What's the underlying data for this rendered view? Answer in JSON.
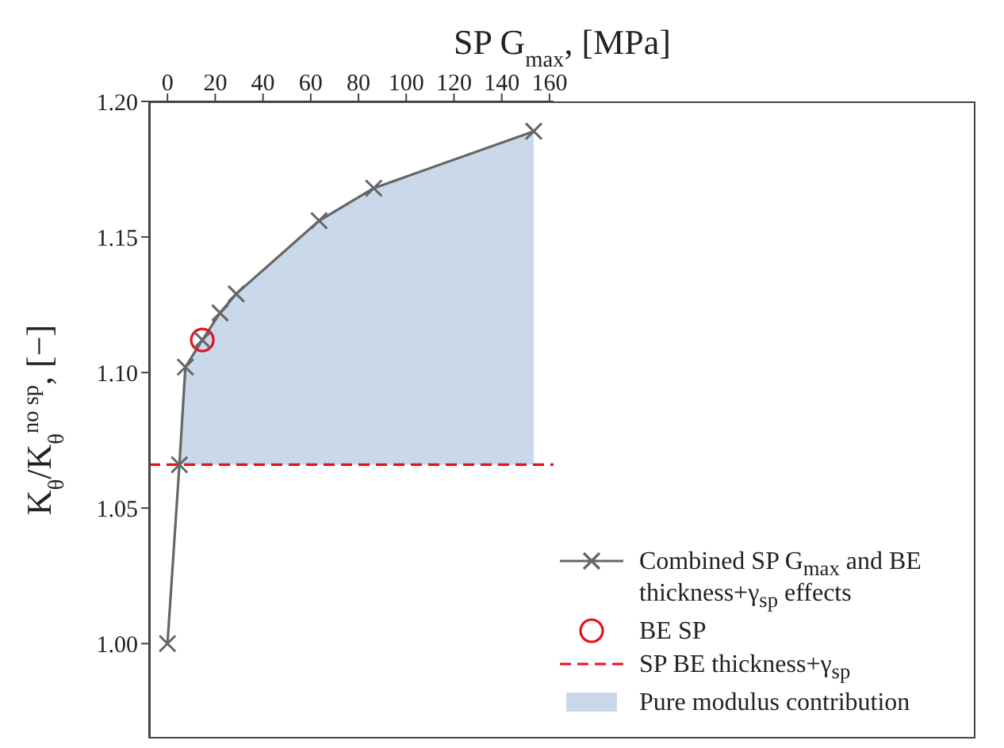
{
  "chart_data": {
    "type": "line",
    "xlabel": "SP G$_{max}$, [MPa]",
    "ylabel": "K$_{θ}$/K$_{θ}$$^{no sp}$, [−]",
    "xlim": [
      -7.7,
      161.7
    ],
    "xticks": [
      0,
      20,
      40,
      60,
      80,
      100,
      120,
      140,
      160
    ],
    "ylim": [
      0.965,
      1.2
    ],
    "yticks": [
      {
        "value": 1.0,
        "label": "1.00"
      },
      {
        "value": 1.05,
        "label": "1.05"
      },
      {
        "value": 1.1,
        "label": "1.10"
      },
      {
        "value": 1.15,
        "label": "1.15"
      },
      {
        "value": 1.2,
        "label": "1.20"
      }
    ],
    "grid": false,
    "legend": "bottom right",
    "series": [
      {
        "type": "area",
        "name": "Pure modulus contribution",
        "color": "#c9d9ea",
        "x": [
          5,
          7.5,
          14.6,
          22,
          28.8,
          63.5,
          86.4,
          153.4
        ],
        "values": [
          1.066,
          1.102,
          1.112,
          1.122,
          1.129,
          1.156,
          1.168,
          1.189
        ]
      },
      {
        "name": "Combined SP G$_{max}$ and BE thickness+γ$_{sp}$ effects",
        "color": "#666666",
        "marker": "cross",
        "line_style": "solid",
        "x": [
          0,
          5,
          7.5,
          14.6,
          22,
          28.8,
          63.5,
          86.4,
          153.4
        ],
        "values": [
          1.0,
          1.066,
          1.102,
          1.112,
          1.122,
          1.129,
          1.156,
          1.168,
          1.189
        ]
      },
      {
        "type": "scatter",
        "name": "BE SP",
        "color": "#e8101a",
        "marker": "circle",
        "x": [
          14.6
        ],
        "values": [
          1.112
        ]
      }
    ],
    "ref_lines": [
      {
        "axis": "y",
        "value": 1.066,
        "label": "SP BE thickness+γ$_{sp}$",
        "color": "#e8101a",
        "line_style": "dashed"
      }
    ]
  }
}
